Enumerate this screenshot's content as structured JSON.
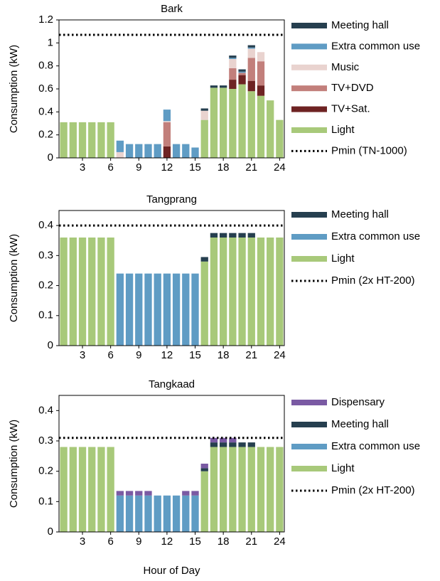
{
  "chart_data": [
    {
      "type": "bar",
      "stacked": true,
      "title": "Bark",
      "ylabel": "Consumption (kW)",
      "x": [
        1,
        2,
        3,
        4,
        5,
        6,
        7,
        8,
        9,
        10,
        11,
        12,
        13,
        14,
        15,
        16,
        17,
        18,
        19,
        20,
        21,
        22,
        23,
        24
      ],
      "xlim": [
        0.5,
        24.5
      ],
      "xticks": [
        3,
        6,
        9,
        12,
        15,
        18,
        21,
        24
      ],
      "ylim": [
        0,
        1.2
      ],
      "yticks": [
        0,
        0.2,
        0.4,
        0.6,
        0.8,
        1,
        1.2
      ],
      "series": [
        {
          "name": "Light",
          "color": "#a8c97a",
          "values": [
            0.31,
            0.31,
            0.31,
            0.31,
            0.31,
            0.31,
            0,
            0,
            0,
            0,
            0,
            0,
            0,
            0,
            0,
            0.33,
            0.61,
            0.61,
            0.6,
            0.64,
            0.58,
            0.54,
            0.5,
            0.33
          ]
        },
        {
          "name": "TV+Sat.",
          "color": "#6e2323",
          "values": [
            0,
            0,
            0,
            0,
            0,
            0,
            0,
            0,
            0,
            0,
            0,
            0.1,
            0,
            0,
            0,
            0,
            0,
            0,
            0.08,
            0.08,
            0.09,
            0.09,
            0,
            0
          ]
        },
        {
          "name": "TV+DVD",
          "color": "#c27f7b",
          "values": [
            0,
            0,
            0,
            0,
            0,
            0,
            0,
            0,
            0,
            0,
            0,
            0.21,
            0,
            0,
            0,
            0,
            0,
            0,
            0.1,
            0.02,
            0.2,
            0.21,
            0,
            0
          ]
        },
        {
          "name": "Music",
          "color": "#e9d3cf",
          "values": [
            0,
            0,
            0,
            0,
            0,
            0,
            0.05,
            0,
            0,
            0,
            0,
            0.01,
            0,
            0,
            0,
            0.08,
            0,
            0,
            0.08,
            0,
            0.08,
            0.08,
            0,
            0
          ]
        },
        {
          "name": "Extra common use",
          "color": "#5f9cc4",
          "values": [
            0,
            0,
            0,
            0,
            0,
            0,
            0.1,
            0.12,
            0.12,
            0.12,
            0.12,
            0.1,
            0.12,
            0.12,
            0.09,
            0,
            0,
            0,
            0.01,
            0.01,
            0.01,
            0,
            0,
            0
          ]
        },
        {
          "name": "Meeting hall",
          "color": "#263f4f",
          "values": [
            0,
            0,
            0,
            0,
            0,
            0,
            0,
            0,
            0,
            0,
            0,
            0,
            0,
            0,
            0,
            0.02,
            0.02,
            0.02,
            0.02,
            0.02,
            0.02,
            0,
            0,
            0
          ]
        }
      ],
      "pmin": {
        "name": "Pmin (TN-1000)",
        "value": 1.07
      }
    },
    {
      "type": "bar",
      "stacked": true,
      "title": "Tangprang",
      "ylabel": "Consumption (kW)",
      "x": [
        1,
        2,
        3,
        4,
        5,
        6,
        7,
        8,
        9,
        10,
        11,
        12,
        13,
        14,
        15,
        16,
        17,
        18,
        19,
        20,
        21,
        22,
        23,
        24
      ],
      "xlim": [
        0.5,
        24.5
      ],
      "xticks": [
        3,
        6,
        9,
        12,
        15,
        18,
        21,
        24
      ],
      "ylim": [
        0,
        0.45
      ],
      "yticks": [
        0,
        0.1,
        0.2,
        0.3,
        0.4
      ],
      "series": [
        {
          "name": "Light",
          "color": "#a8c97a",
          "values": [
            0.36,
            0.36,
            0.36,
            0.36,
            0.36,
            0.36,
            0,
            0,
            0,
            0,
            0,
            0,
            0,
            0,
            0,
            0.28,
            0.36,
            0.36,
            0.36,
            0.36,
            0.36,
            0.36,
            0.36,
            0.36
          ]
        },
        {
          "name": "Extra common use",
          "color": "#5f9cc4",
          "values": [
            0,
            0,
            0,
            0,
            0,
            0,
            0.24,
            0.24,
            0.24,
            0.24,
            0.24,
            0.24,
            0.24,
            0.24,
            0.24,
            0,
            0,
            0,
            0,
            0,
            0,
            0,
            0,
            0
          ]
        },
        {
          "name": "Meeting hall",
          "color": "#263f4f",
          "values": [
            0,
            0,
            0,
            0,
            0,
            0,
            0,
            0,
            0,
            0,
            0,
            0,
            0,
            0,
            0,
            0.015,
            0.015,
            0.015,
            0.015,
            0.015,
            0.015,
            0,
            0,
            0
          ]
        }
      ],
      "pmin": {
        "name": "Pmin (2x HT-200)",
        "value": 0.4
      }
    },
    {
      "type": "bar",
      "stacked": true,
      "title": "Tangkaad",
      "ylabel": "Consumption (kW)",
      "xlabel": "Hour of Day",
      "x": [
        1,
        2,
        3,
        4,
        5,
        6,
        7,
        8,
        9,
        10,
        11,
        12,
        13,
        14,
        15,
        16,
        17,
        18,
        19,
        20,
        21,
        22,
        23,
        24
      ],
      "xlim": [
        0.5,
        24.5
      ],
      "xticks": [
        3,
        6,
        9,
        12,
        15,
        18,
        21,
        24
      ],
      "ylim": [
        0,
        0.45
      ],
      "yticks": [
        0,
        0.1,
        0.2,
        0.3,
        0.4
      ],
      "series": [
        {
          "name": "Light",
          "color": "#a8c97a",
          "values": [
            0.28,
            0.28,
            0.28,
            0.28,
            0.28,
            0.28,
            0,
            0,
            0,
            0,
            0,
            0,
            0,
            0,
            0,
            0.2,
            0.28,
            0.28,
            0.28,
            0.28,
            0.28,
            0.28,
            0.28,
            0.28
          ]
        },
        {
          "name": "Extra common use",
          "color": "#5f9cc4",
          "values": [
            0,
            0,
            0,
            0,
            0,
            0,
            0.12,
            0.12,
            0.12,
            0.12,
            0.12,
            0.12,
            0.12,
            0.12,
            0.12,
            0,
            0,
            0,
            0,
            0,
            0,
            0,
            0,
            0
          ]
        },
        {
          "name": "Meeting hall",
          "color": "#263f4f",
          "values": [
            0,
            0,
            0,
            0,
            0,
            0,
            0,
            0,
            0,
            0,
            0,
            0,
            0,
            0,
            0,
            0.01,
            0.015,
            0.015,
            0.015,
            0.015,
            0.015,
            0,
            0,
            0
          ]
        },
        {
          "name": "Dispensary",
          "color": "#7a5aa3",
          "values": [
            0,
            0,
            0,
            0,
            0,
            0,
            0.015,
            0.015,
            0.015,
            0.015,
            0,
            0,
            0,
            0.015,
            0.015,
            0.015,
            0.015,
            0.015,
            0.015,
            0,
            0,
            0,
            0,
            0
          ]
        }
      ],
      "pmin": {
        "name": "Pmin (2x HT-200)",
        "value": 0.31
      }
    }
  ]
}
